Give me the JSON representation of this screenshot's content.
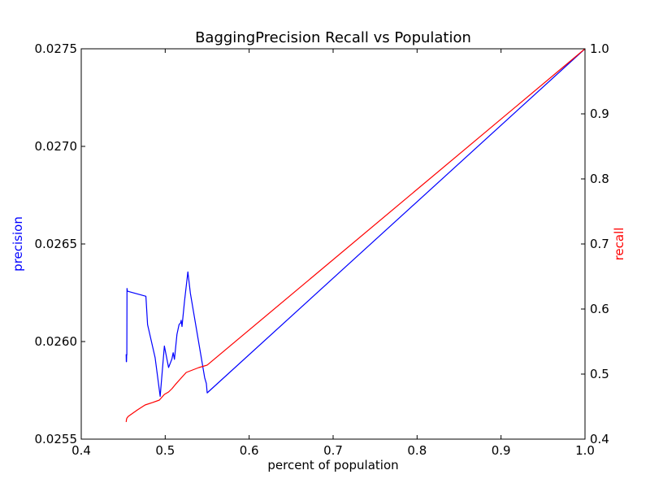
{
  "chart_data": {
    "type": "line",
    "title": "BaggingPrecision Recall vs Population",
    "xlabel": "percent of population",
    "ylabel_left": "precision",
    "ylabel_right": "recall",
    "xlim": [
      0.4,
      1.0
    ],
    "ylim_left": [
      0.0255,
      0.0275
    ],
    "ylim_right": [
      0.4,
      1.0
    ],
    "x_ticks": [
      "0.4",
      "0.5",
      "0.6",
      "0.7",
      "0.8",
      "0.9",
      "1.0"
    ],
    "y_left_ticks": [
      "0.0255",
      "0.0260",
      "0.0265",
      "0.0270",
      "0.0275"
    ],
    "y_right_ticks": [
      "0.4",
      "0.5",
      "0.6",
      "0.7",
      "0.8",
      "0.9",
      "1.0"
    ],
    "grid": false,
    "colors": {
      "precision": "#0000ff",
      "recall": "#ff0000"
    },
    "series": [
      {
        "name": "precision",
        "axis": "left",
        "color": "#0000ff",
        "x": [
          0.4535,
          0.4537,
          0.4539,
          0.4541,
          0.4543,
          0.4545,
          0.455,
          0.477,
          0.479,
          0.488,
          0.494,
          0.499,
          0.504,
          0.508,
          0.5095,
          0.511,
          0.514,
          0.5165,
          0.5185,
          0.519,
          0.52,
          0.523,
          0.527,
          0.53,
          0.547,
          0.549,
          0.55,
          1.0
        ],
        "y": [
          0.025935,
          0.025897,
          0.025897,
          0.025932,
          0.025931,
          0.026272,
          0.026258,
          0.026232,
          0.026087,
          0.025917,
          0.025719,
          0.025977,
          0.025867,
          0.025911,
          0.025943,
          0.025909,
          0.026037,
          0.026087,
          0.026097,
          0.026109,
          0.026077,
          0.026207,
          0.026357,
          0.026247,
          0.025815,
          0.025785,
          0.025737,
          0.0275
        ]
      },
      {
        "name": "recall",
        "axis": "right",
        "color": "#ff0000",
        "x": [
          0.4535,
          0.4539,
          0.4541,
          0.4545,
          0.456,
          0.467,
          0.476,
          0.485,
          0.493,
          0.499,
          0.504,
          0.508,
          0.512,
          0.518,
          0.525,
          0.53,
          0.54,
          0.55,
          1.0
        ],
        "y": [
          0.4264,
          0.43,
          0.4314,
          0.4325,
          0.435,
          0.445,
          0.4525,
          0.4563,
          0.46,
          0.4688,
          0.4725,
          0.4775,
          0.4838,
          0.4925,
          0.5025,
          0.505,
          0.51,
          0.5138,
          1.0
        ]
      }
    ]
  }
}
